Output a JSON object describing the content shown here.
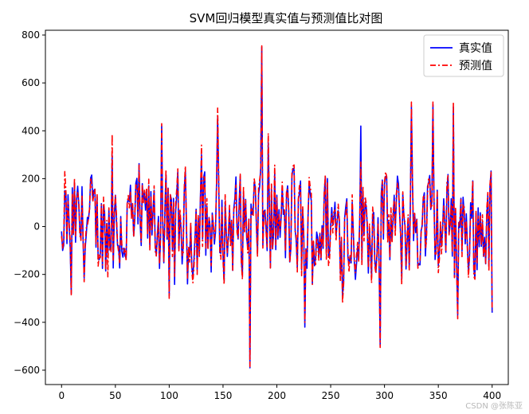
{
  "chart_data": {
    "type": "line",
    "title": "SVM回归模型真实值与预测值比对图",
    "xlabel": "",
    "ylabel": "",
    "xlim": [
      -15,
      415
    ],
    "ylim": [
      -660,
      820
    ],
    "x_ticks": [
      0,
      50,
      100,
      150,
      200,
      250,
      300,
      350,
      400
    ],
    "x_tick_labels": [
      "0",
      "50",
      "100",
      "150",
      "200",
      "250",
      "300",
      "350",
      "400"
    ],
    "y_ticks": [
      -600,
      -400,
      -200,
      0,
      200,
      400,
      600,
      800
    ],
    "y_tick_labels": [
      "−600",
      "−400",
      "−200",
      "0",
      "200",
      "400",
      "600",
      "800"
    ],
    "grid": false,
    "legend_position": "top-right",
    "n_points": 401,
    "anchor_points": [
      {
        "x": 0,
        "actual": -20,
        "predicted": -40
      },
      {
        "x": 1,
        "actual": -100,
        "predicted": -90
      },
      {
        "x": 3,
        "actual": 150,
        "predicted": 230
      },
      {
        "x": 9,
        "actual": -280,
        "predicted": -285
      },
      {
        "x": 43,
        "actual": -130,
        "predicted": -210
      },
      {
        "x": 47,
        "actual": 300,
        "predicted": 385
      },
      {
        "x": 93,
        "actual": 420,
        "predicted": 430
      },
      {
        "x": 100,
        "actual": -290,
        "predicted": -300
      },
      {
        "x": 130,
        "actual": 300,
        "predicted": 340
      },
      {
        "x": 145,
        "actual": 460,
        "predicted": 495
      },
      {
        "x": 175,
        "actual": -590,
        "predicted": -585
      },
      {
        "x": 186,
        "actual": 750,
        "predicted": 755
      },
      {
        "x": 192,
        "actual": 350,
        "predicted": 390
      },
      {
        "x": 226,
        "actual": -420,
        "predicted": -400
      },
      {
        "x": 278,
        "actual": 420,
        "predicted": 270
      },
      {
        "x": 296,
        "actual": -495,
        "predicted": -505
      },
      {
        "x": 325,
        "actual": 500,
        "predicted": 520
      },
      {
        "x": 345,
        "actual": 510,
        "predicted": 520
      },
      {
        "x": 364,
        "actual": 500,
        "predicted": 520
      },
      {
        "x": 368,
        "actual": -370,
        "predicted": -385
      },
      {
        "x": 400,
        "actual": -360,
        "predicted": -350
      }
    ],
    "typical_range": [
      -300,
      300
    ],
    "series": [
      {
        "name": "真实值",
        "color": "#0000ff",
        "style": "solid"
      },
      {
        "name": "预测值",
        "color": "#ff0000",
        "style": "dashdot"
      }
    ]
  },
  "watermark": "CSDN @张陈亚"
}
